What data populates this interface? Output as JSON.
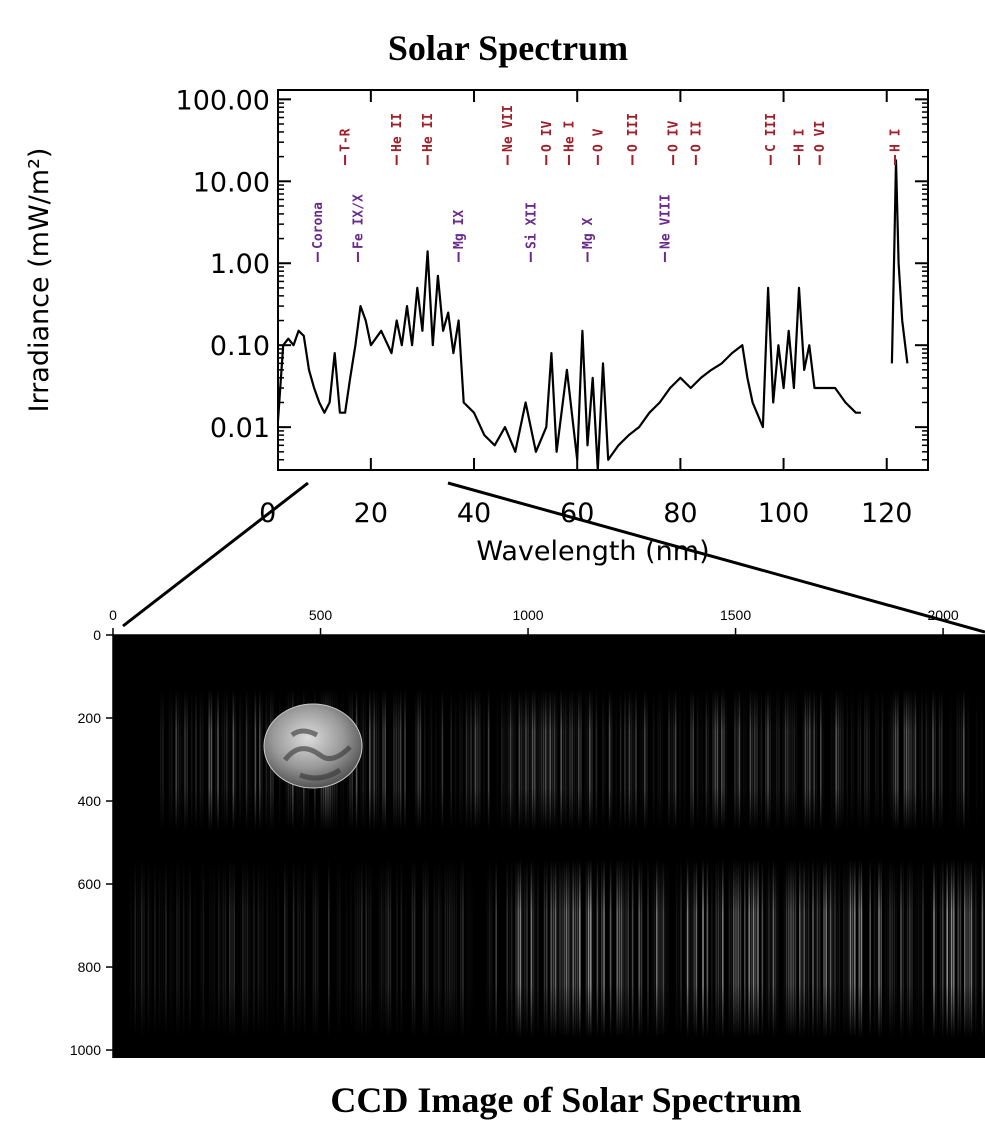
{
  "chart_data": [
    {
      "type": "line",
      "title": "Solar Spectrum",
      "xlabel": "Wavelength (nm)",
      "ylabel": "Irradiance (mW/m²)",
      "x": [
        2,
        3,
        4,
        5,
        6,
        7,
        8,
        9,
        10,
        11,
        12,
        13,
        14,
        15,
        16,
        17,
        18,
        19,
        20,
        22,
        24,
        25,
        26,
        27,
        28,
        29,
        30,
        31,
        32,
        33,
        34,
        35,
        36,
        37,
        38,
        40,
        42,
        44,
        46,
        48,
        50,
        52,
        54,
        55,
        56,
        58,
        60,
        61,
        62,
        63,
        64,
        65,
        66,
        68,
        70,
        72,
        74,
        76,
        78,
        80,
        82,
        84,
        86,
        88,
        90,
        92,
        93,
        94,
        96,
        97,
        98,
        99,
        100,
        101,
        102,
        103,
        104,
        105,
        106,
        108,
        110,
        112,
        114,
        115,
        118,
        121,
        121.5,
        121.8,
        122.3,
        123,
        124
      ],
      "values": [
        0.012,
        0.1,
        0.12,
        0.1,
        0.15,
        0.13,
        0.05,
        0.03,
        0.02,
        0.015,
        0.02,
        0.08,
        0.015,
        0.015,
        0.04,
        0.1,
        0.3,
        0.2,
        0.1,
        0.15,
        0.08,
        0.2,
        0.1,
        0.3,
        0.1,
        0.5,
        0.15,
        1.4,
        0.1,
        0.7,
        0.15,
        0.25,
        0.08,
        0.2,
        0.02,
        0.015,
        0.008,
        0.006,
        0.01,
        0.005,
        0.02,
        0.005,
        0.01,
        0.08,
        0.005,
        0.05,
        0.004,
        0.15,
        0.006,
        0.04,
        0.003,
        0.06,
        0.004,
        0.006,
        0.008,
        0.01,
        0.015,
        0.02,
        0.03,
        0.04,
        0.03,
        0.04,
        0.05,
        0.06,
        0.08,
        0.1,
        0.04,
        0.02,
        0.01,
        0.5,
        0.02,
        0.1,
        0.03,
        0.15,
        0.03,
        0.5,
        0.05,
        0.1,
        0.03,
        0.03,
        0.03,
        0.02,
        0.015,
        0.015,
        null,
        0.06,
        2,
        18,
        1,
        0.2,
        0.06
      ],
      "color": "#000000",
      "log_y": true,
      "xlim": [
        2,
        128
      ],
      "xticks": [
        0,
        20,
        40,
        60,
        80,
        100,
        120
      ],
      "ylim": [
        0.003,
        130
      ],
      "yticks": [
        {
          "value": 100,
          "label": "100.00"
        },
        {
          "value": 10,
          "label": "10.00"
        },
        {
          "value": 1,
          "label": "1.00"
        },
        {
          "value": 0.1,
          "label": "0.10"
        },
        {
          "value": 0.01,
          "label": "0.01"
        }
      ],
      "annotation_groups": [
        {
          "color": "#a0202a",
          "labels": [
            {
              "text": "T-R",
              "x": 15
            },
            {
              "text": "He II",
              "x": 25
            },
            {
              "text": "He II",
              "x": 31
            },
            {
              "text": "Ne VII",
              "x": 46.5
            },
            {
              "text": "O IV",
              "x": 54
            },
            {
              "text": "He I",
              "x": 58.4
            },
            {
              "text": "O V",
              "x": 64
            },
            {
              "text": "O III",
              "x": 70.7
            },
            {
              "text": "O IV",
              "x": 78.6
            },
            {
              "text": "O II",
              "x": 83
            },
            {
              "text": "C III",
              "x": 97.5
            },
            {
              "text": "H I",
              "x": 103
            },
            {
              "text": "O VI",
              "x": 107
            },
            {
              "text": "H I",
              "x": 121.6
            }
          ]
        },
        {
          "color": "#6a2a8a",
          "labels": [
            {
              "text": "Corona",
              "x": 9.7
            },
            {
              "text": "Fe IX/X",
              "x": 17.5
            },
            {
              "text": "Mg IX",
              "x": 37
            },
            {
              "text": "Si XII",
              "x": 51
            },
            {
              "text": "Mg X",
              "x": 62
            },
            {
              "text": "Ne VIII",
              "x": 77
            }
          ]
        }
      ]
    },
    {
      "type": "image",
      "title": "CCD Image of Solar Spectrum",
      "xlim": [
        0,
        2048
      ],
      "xticks": [
        0,
        500,
        1000,
        1500,
        2000
      ],
      "ylim": [
        0,
        1024
      ],
      "yticks": [
        0,
        200,
        400,
        600,
        800,
        1000
      ]
    }
  ]
}
